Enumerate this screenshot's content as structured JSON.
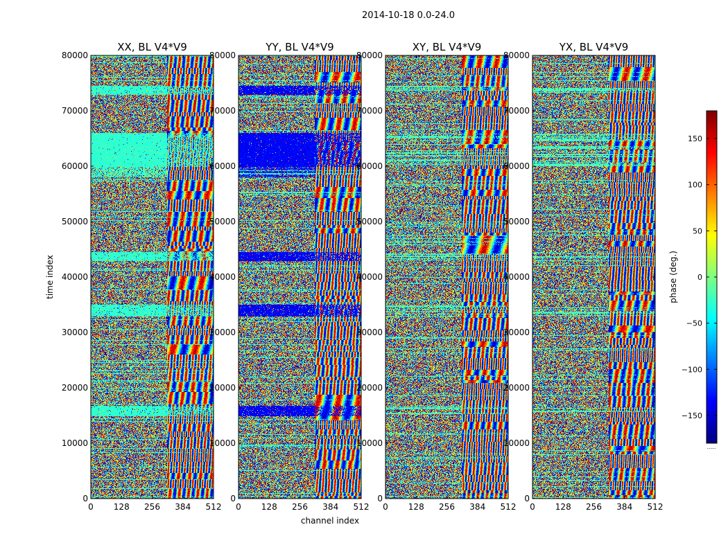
{
  "chart_data": {
    "type": "heatmap",
    "suptitle": "2014-10-18 0.0-24.0",
    "panels": [
      {
        "title": "XX, BL V4*V9",
        "style": "xx"
      },
      {
        "title": "YY, BL V4*V9",
        "style": "yy"
      },
      {
        "title": "XY, BL V4*V9",
        "style": "xy"
      },
      {
        "title": "YX, BL V4*V9",
        "style": "yx"
      }
    ],
    "xlabel": "channel index",
    "ylabel": "time index",
    "xlim": [
      0,
      512
    ],
    "ylim": [
      0,
      80000
    ],
    "xticks": [
      0,
      128,
      256,
      384,
      512
    ],
    "yticks": [
      0,
      10000,
      20000,
      30000,
      40000,
      50000,
      60000,
      70000,
      80000
    ],
    "colorbar": {
      "label": "phase (deg.)",
      "range": [
        -180,
        180
      ],
      "ticks": [
        -150,
        -100,
        -50,
        0,
        50,
        100,
        150
      ],
      "tick_labels": [
        "−150",
        "−100",
        "−50",
        "0",
        "50",
        "100",
        "150"
      ],
      "colormap": "jet",
      "footer": "....."
    },
    "notes": {
      "fringe_channel_start": 320,
      "flat_bands_time": [
        [
          33000,
          35000
        ],
        [
          43000,
          44500
        ],
        [
          60000,
          66000
        ],
        [
          73000,
          74500
        ],
        [
          15000,
          16800
        ]
      ]
    }
  }
}
